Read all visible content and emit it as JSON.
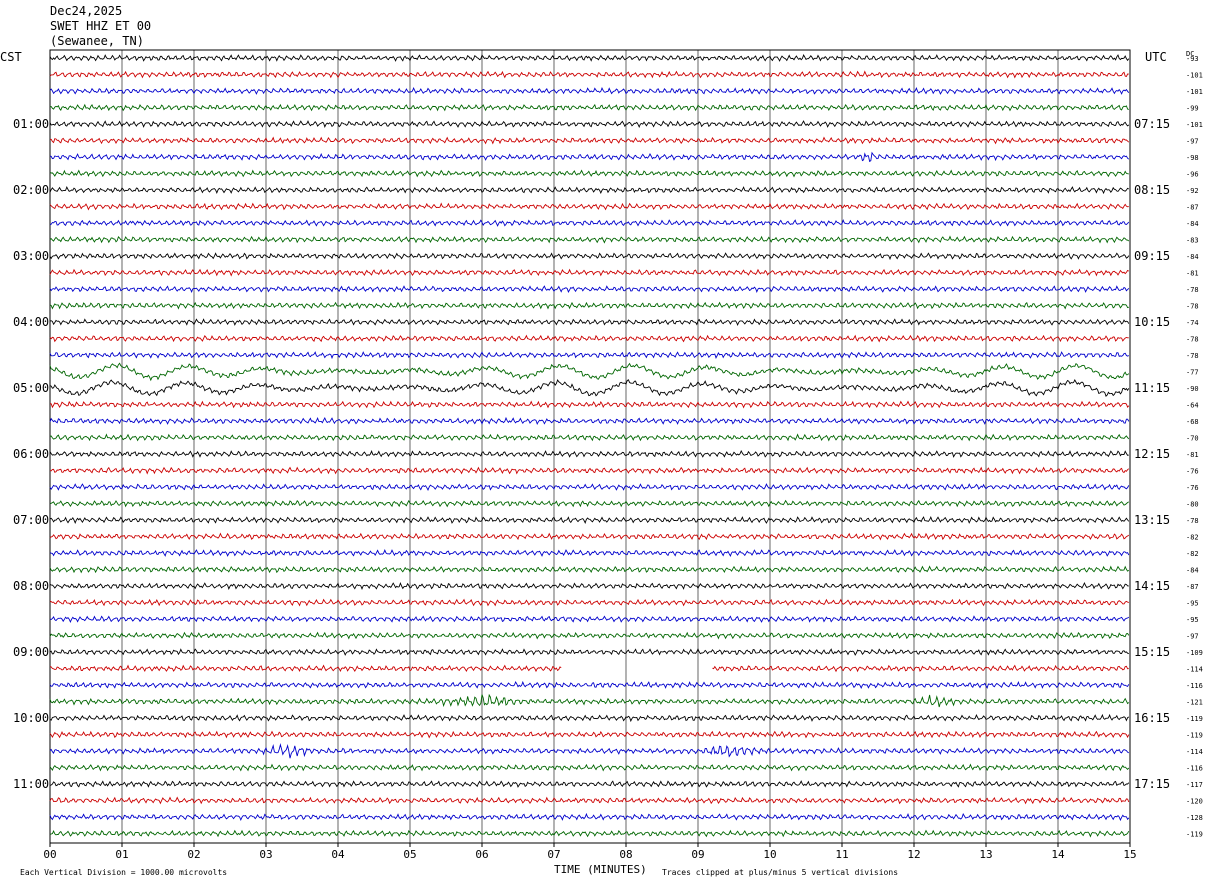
{
  "header": {
    "date": "Dec24,2025",
    "station": "SWET HHZ ET 00",
    "location": "(Sewanee, TN)"
  },
  "left_timezone": "CST",
  "right_timezone": "UTC",
  "dc_label": "DC",
  "left_hour_labels": [
    "01:00",
    "02:00",
    "03:00",
    "04:00",
    "05:00",
    "06:00",
    "07:00",
    "08:00",
    "09:00",
    "10:00",
    "11:00"
  ],
  "right_hour_labels": [
    "07:15",
    "08:15",
    "09:15",
    "10:15",
    "11:15",
    "12:15",
    "13:15",
    "14:15",
    "15:15",
    "16:15",
    "17:15"
  ],
  "footer": {
    "vertical_division": "Each Vertical Division = 1000.00 microvolts",
    "clip_note": "Traces clipped at plus/minus 5 vertical divisions"
  },
  "colors": {
    "trace_cycle": [
      "#000000",
      "#cc0000",
      "#0000cc",
      "#006600"
    ],
    "grid": "#000000"
  },
  "chart_data": {
    "type": "line",
    "title": "SWET HHZ ET 00",
    "xlabel": "TIME (MINUTES)",
    "ylabel": "",
    "xlim": [
      0,
      15
    ],
    "x_ticks": [
      "00",
      "01",
      "02",
      "03",
      "04",
      "05",
      "06",
      "07",
      "08",
      "09",
      "10",
      "11",
      "12",
      "13",
      "14",
      "15"
    ],
    "rows_per_hour": 4,
    "minutes_per_row": 15,
    "dc_offsets": [
      -93,
      -101,
      -101,
      -99,
      -101,
      -97,
      -98,
      -96,
      -92,
      -87,
      -84,
      -83,
      -84,
      -81,
      -78,
      -78,
      -74,
      -78,
      -78,
      -77,
      -90,
      -64,
      -68,
      -70,
      -81,
      -76,
      -76,
      -80,
      -78,
      -82,
      -82,
      -84,
      -87,
      -95,
      -95,
      -97,
      -109,
      -114,
      -116,
      -121,
      -119,
      -119,
      -114,
      -116,
      -117,
      -120,
      -128,
      -119
    ],
    "events": [
      {
        "row": 6,
        "description": "small burst",
        "start_min": 11.2,
        "end_min": 11.5
      },
      {
        "row": 19,
        "description": "long-period oscillation",
        "start_min": 0.0,
        "end_min": 15.0
      },
      {
        "row": 20,
        "description": "long-period oscillation",
        "start_min": 0.0,
        "end_min": 15.0
      },
      {
        "row": 37,
        "description": "data gap",
        "start_min": 7.1,
        "end_min": 9.2
      },
      {
        "row": 39,
        "description": "noise burst",
        "start_min": 5.3,
        "end_min": 6.6
      },
      {
        "row": 39,
        "description": "noise burst",
        "start_min": 12.0,
        "end_min": 12.6
      },
      {
        "row": 42,
        "description": "noise burst",
        "start_min": 2.9,
        "end_min": 3.7
      },
      {
        "row": 42,
        "description": "noise burst",
        "start_min": 9.0,
        "end_min": 9.9
      }
    ]
  }
}
